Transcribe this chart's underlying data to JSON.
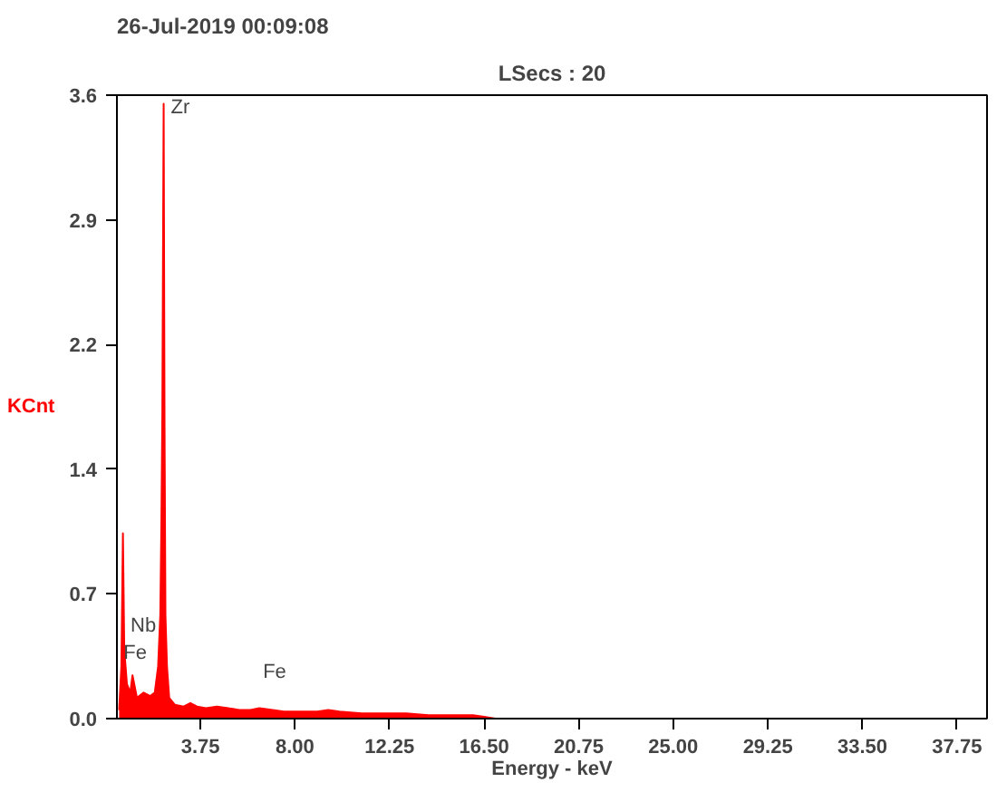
{
  "chart_data": {
    "type": "area",
    "title": "26-Jul-2019 00:09:08",
    "subtitle": "LSecs : 20",
    "xlabel": "Energy - keV",
    "ylabel": "KCnt",
    "x": [
      0.1,
      0.2,
      0.27,
      0.33,
      0.45,
      0.6,
      0.7,
      0.9,
      1.2,
      1.5,
      1.7,
      1.85,
      1.95,
      2.0,
      2.04,
      2.1,
      2.14,
      2.18,
      2.25,
      2.35,
      2.6,
      3.0,
      3.3,
      3.6,
      4.0,
      4.5,
      5.0,
      5.5,
      6.0,
      6.4,
      7.0,
      7.5,
      8.0,
      9.0,
      9.5,
      10.0,
      11.0,
      12.0,
      13.0,
      14.0,
      15.0,
      16.0,
      16.5,
      17.0
    ],
    "series": [
      {
        "color": "#ff0000",
        "values": [
          0.05,
          0.3,
          1.07,
          0.4,
          0.2,
          0.15,
          0.25,
          0.12,
          0.15,
          0.13,
          0.15,
          0.3,
          0.6,
          1.15,
          1.75,
          3.55,
          1.7,
          0.6,
          0.3,
          0.12,
          0.08,
          0.07,
          0.09,
          0.07,
          0.06,
          0.07,
          0.06,
          0.05,
          0.05,
          0.06,
          0.05,
          0.04,
          0.04,
          0.04,
          0.05,
          0.04,
          0.03,
          0.03,
          0.03,
          0.02,
          0.02,
          0.02,
          0.01,
          0.0
        ]
      }
    ],
    "xlim": [
      0,
      39.1
    ],
    "ylim": [
      0,
      3.6
    ],
    "xticks": [
      3.75,
      {
        "value": 8,
        "label": "8.00"
      },
      12.25,
      {
        "value": 16.5,
        "label": "16.50"
      },
      20.75,
      {
        "value": 25,
        "label": "25.00"
      },
      29.25,
      {
        "value": 33.5,
        "label": "33.50"
      },
      37.75
    ],
    "yticks": [
      {
        "value": 0,
        "label": "0.0"
      },
      {
        "value": 0.72,
        "label": "0.7"
      },
      {
        "value": 1.44,
        "label": "1.4"
      },
      {
        "value": 2.16,
        "label": "2.2"
      },
      {
        "value": 2.88,
        "label": "2.9"
      },
      {
        "value": 3.6,
        "label": "3.6"
      }
    ],
    "annotations": [
      {
        "text": "Zr",
        "x": 2.1,
        "y": 3.55
      },
      {
        "text": "Nb",
        "x": 0.45,
        "y": 0.2
      },
      {
        "text": "Fe",
        "x": 0.7,
        "y": 0.25
      },
      {
        "text": "Fe",
        "x": 6.4,
        "y": 0.06
      }
    ],
    "grid": false
  }
}
